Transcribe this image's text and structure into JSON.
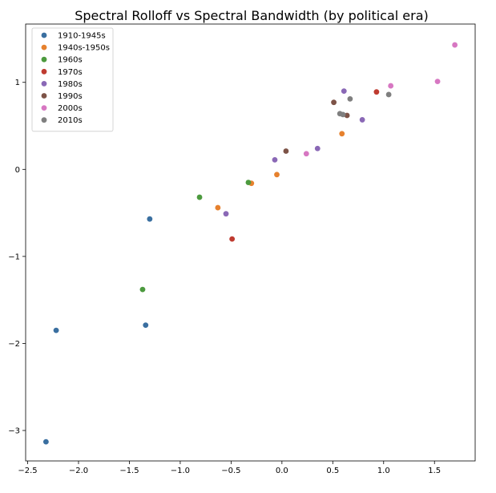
{
  "chart_data": {
    "type": "scatter",
    "title": "Spectral Rolloff vs Spectral Bandwidth (by political era)",
    "xlabel": "",
    "ylabel": "",
    "xlim": [
      -2.52,
      1.9
    ],
    "ylim": [
      -3.35,
      1.67
    ],
    "xticks": [
      -2.5,
      -2.0,
      -1.5,
      -1.0,
      -0.5,
      0.0,
      0.5,
      1.0,
      1.5
    ],
    "xtick_labels": [
      "−2.5",
      "−2.0",
      "−1.5",
      "−1.0",
      "−0.5",
      "0.0",
      "0.5",
      "1.0",
      "1.5"
    ],
    "yticks": [
      -3,
      -2,
      -1,
      0,
      1
    ],
    "ytick_labels": [
      "−3",
      "−2",
      "−1",
      "0",
      "1"
    ],
    "grid": false,
    "legend_position": "top-left",
    "series": [
      {
        "name": "1910-1945s",
        "color": "#3a6fa0",
        "points": [
          [
            -2.32,
            -3.13
          ],
          [
            -2.22,
            -1.85
          ],
          [
            -1.34,
            -1.79
          ],
          [
            -1.3,
            -0.57
          ]
        ]
      },
      {
        "name": "1940s-1950s",
        "color": "#e6812e",
        "points": [
          [
            -0.63,
            -0.44
          ],
          [
            -0.3,
            -0.16
          ],
          [
            -0.05,
            -0.06
          ],
          [
            0.59,
            0.41
          ]
        ]
      },
      {
        "name": "1960s",
        "color": "#4c9a3e",
        "points": [
          [
            -1.37,
            -1.38
          ],
          [
            -0.81,
            -0.32
          ],
          [
            -0.33,
            -0.15
          ]
        ]
      },
      {
        "name": "1970s",
        "color": "#bf3b30",
        "points": [
          [
            -0.49,
            -0.8
          ],
          [
            0.93,
            0.89
          ]
        ]
      },
      {
        "name": "1980s",
        "color": "#8a68b6",
        "points": [
          [
            -0.55,
            -0.51
          ],
          [
            -0.07,
            0.11
          ],
          [
            0.35,
            0.24
          ],
          [
            0.61,
            0.9
          ],
          [
            0.79,
            0.57
          ]
        ]
      },
      {
        "name": "1990s",
        "color": "#7d5347",
        "points": [
          [
            0.04,
            0.21
          ],
          [
            0.51,
            0.77
          ],
          [
            0.64,
            0.62
          ]
        ]
      },
      {
        "name": "2000s",
        "color": "#d777c2",
        "points": [
          [
            0.24,
            0.18
          ],
          [
            1.07,
            0.96
          ],
          [
            1.53,
            1.01
          ],
          [
            1.7,
            1.43
          ]
        ]
      },
      {
        "name": "2010s",
        "color": "#7f7f7f",
        "points": [
          [
            0.57,
            0.64
          ],
          [
            0.6,
            0.63
          ],
          [
            0.67,
            0.81
          ],
          [
            1.05,
            0.86
          ]
        ]
      }
    ]
  }
}
